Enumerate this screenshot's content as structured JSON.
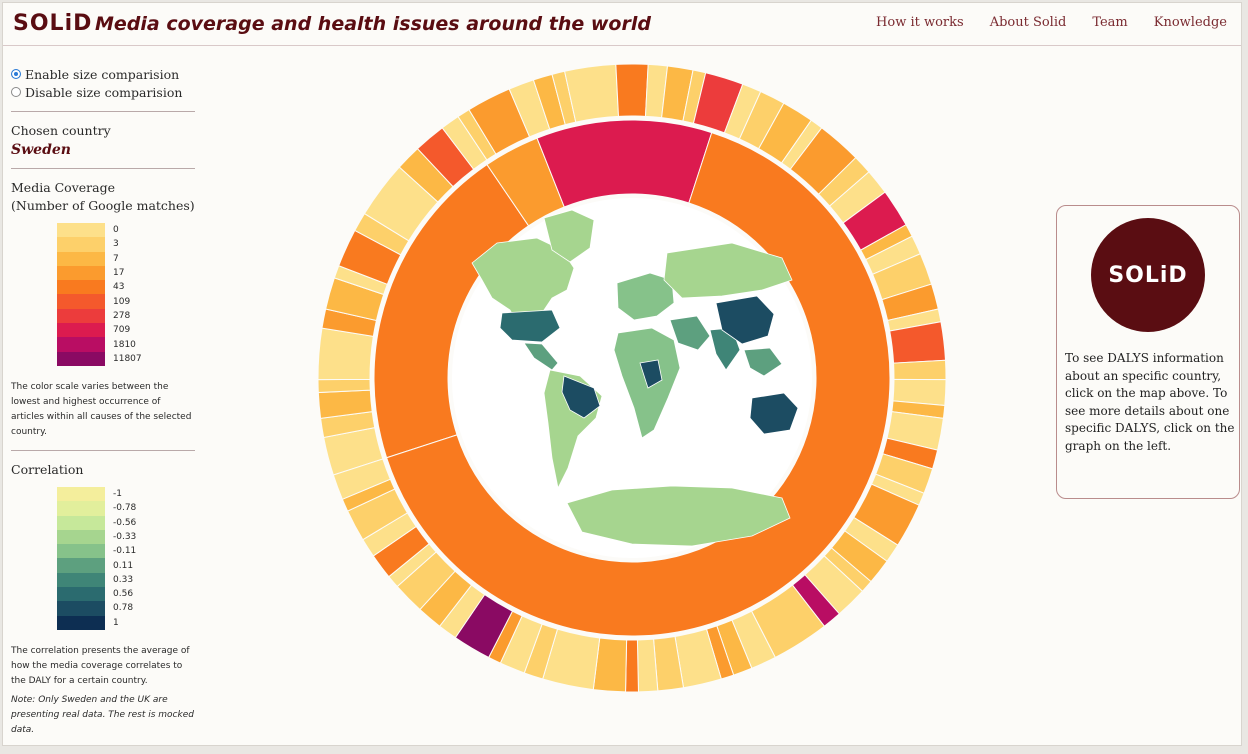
{
  "header": {
    "logo": "SOLiD",
    "title": "Media coverage and health issues around the world",
    "nav": [
      "How it works",
      "About Solid",
      "Team",
      "Knowledge"
    ]
  },
  "sidebar": {
    "radio_enable": "Enable size comparision",
    "radio_disable": "Disable size comparision",
    "chosen_country_label": "Chosen country",
    "chosen_country": "Sweden",
    "media_title_1": "Media Coverage",
    "media_title_2": "(Number of Google matches)",
    "media_legend": [
      {
        "label": "0",
        "color": "#fde08a"
      },
      {
        "label": "3",
        "color": "#fdd06a"
      },
      {
        "label": "7",
        "color": "#fcb845"
      },
      {
        "label": "17",
        "color": "#fb9b2e"
      },
      {
        "label": "43",
        "color": "#f97a1f"
      },
      {
        "label": "109",
        "color": "#f4592c"
      },
      {
        "label": "278",
        "color": "#ec3c3c"
      },
      {
        "label": "709",
        "color": "#dc1b4f"
      },
      {
        "label": "1810",
        "color": "#b90d63"
      },
      {
        "label": "11807",
        "color": "#8a0a63"
      }
    ],
    "media_note": "The color scale varies between the lowest and highest occurrence of articles within all causes of the selected country.",
    "correlation_title": "Correlation",
    "correlation_legend": [
      {
        "label": "-1",
        "color": "#f4ee9c"
      },
      {
        "label": "-0.78",
        "color": "#e2ef9c"
      },
      {
        "label": "-0.56",
        "color": "#c6e89a"
      },
      {
        "label": "-0.33",
        "color": "#a6d58f"
      },
      {
        "label": "-0.11",
        "color": "#86c28a"
      },
      {
        "label": "0.11",
        "color": "#5da07f"
      },
      {
        "label": "0.33",
        "color": "#3f8577"
      },
      {
        "label": "0.56",
        "color": "#2b6b6f"
      },
      {
        "label": "0.78",
        "color": "#1c4c62"
      },
      {
        "label": "1",
        "color": "#0d2e52"
      }
    ],
    "correlation_note": "The correlation presents the average of how the media coverage correlates to the DALY for a certain country.",
    "note": "Note: Only Sweden and the UK are presenting real data. The rest is mocked data."
  },
  "info": {
    "logo": "SOLiD",
    "text": "To see DALYS information about an specific country, click on the map above. To see more details about one specific DALYS, click on the graph on the left."
  },
  "colors": {
    "brand": "#5a0d12",
    "inner_ring": "#f97a1f",
    "map_land": "#a6d58f",
    "map_dark": "#1c4c62",
    "map_inner": "#ffffff"
  },
  "chart_data": {
    "type": "sunburst",
    "inner_ring": [
      {
        "fraction": 0.205,
        "color": "#f97a1f"
      },
      {
        "fraction": 0.035,
        "color": "#fb9b2e"
      },
      {
        "fraction": 0.11,
        "color": "#dc1b4f"
      },
      {
        "fraction": 0.65,
        "color": "#f97a1f"
      }
    ]
  }
}
